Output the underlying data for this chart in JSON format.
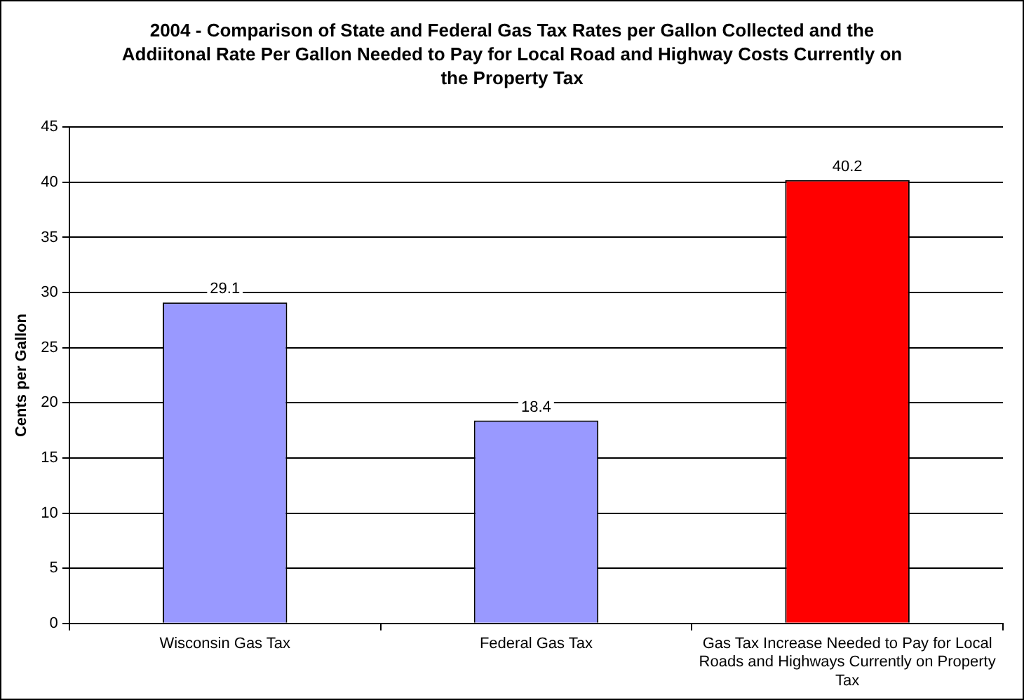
{
  "chart_data": {
    "type": "bar",
    "title": "2004 - Comparison of State and Federal Gas Tax Rates per Gallon Collected and the Addiitonal Rate Per Gallon Needed to Pay for Local Road and Highway Costs Currently on the Property Tax",
    "ylabel": "Cents per Gallon",
    "categories": [
      "Wisconsin Gas Tax",
      "Federal Gas Tax",
      "Gas Tax Increase Needed to Pay for Local Roads and Highways Currently on Property Tax"
    ],
    "values": [
      29.1,
      18.4,
      40.2
    ],
    "colors": [
      "#9999ff",
      "#9999ff",
      "#ff0000"
    ],
    "ylim": [
      0,
      45
    ],
    "yticks": [
      0,
      5,
      10,
      15,
      20,
      25,
      30,
      35,
      40,
      45
    ],
    "grid": "y",
    "legend": false,
    "data_labels": true
  }
}
